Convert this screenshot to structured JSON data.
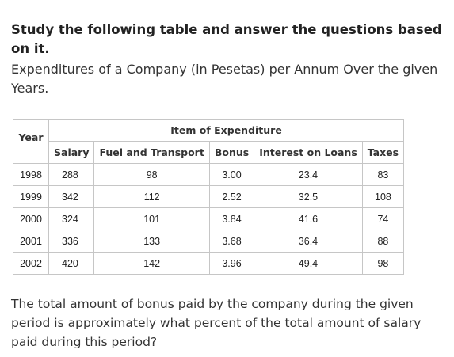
{
  "heading": "Study the following table and answer the questions based on it.",
  "subheading": "Expenditures of a Company (in Pesetas) per Annum Over the given Years.",
  "table": {
    "year_header": "Year",
    "group_header": "Item of Expenditure",
    "columns": [
      "Salary",
      "Fuel and Transport",
      "Bonus",
      "Interest on Loans",
      "Taxes"
    ],
    "rows": [
      {
        "year": "1998",
        "values": [
          "288",
          "98",
          "3.00",
          "23.4",
          "83"
        ]
      },
      {
        "year": "1999",
        "values": [
          "342",
          "112",
          "2.52",
          "32.5",
          "108"
        ]
      },
      {
        "year": "2000",
        "values": [
          "324",
          "101",
          "3.84",
          "41.6",
          "74"
        ]
      },
      {
        "year": "2001",
        "values": [
          "336",
          "133",
          "3.68",
          "36.4",
          "88"
        ]
      },
      {
        "year": "2002",
        "values": [
          "420",
          "142",
          "3.96",
          "49.4",
          "98"
        ]
      }
    ]
  },
  "question": "The total amount of bonus paid by the company during the given period is approximately what percent of the total amount of salary paid during this period?"
}
